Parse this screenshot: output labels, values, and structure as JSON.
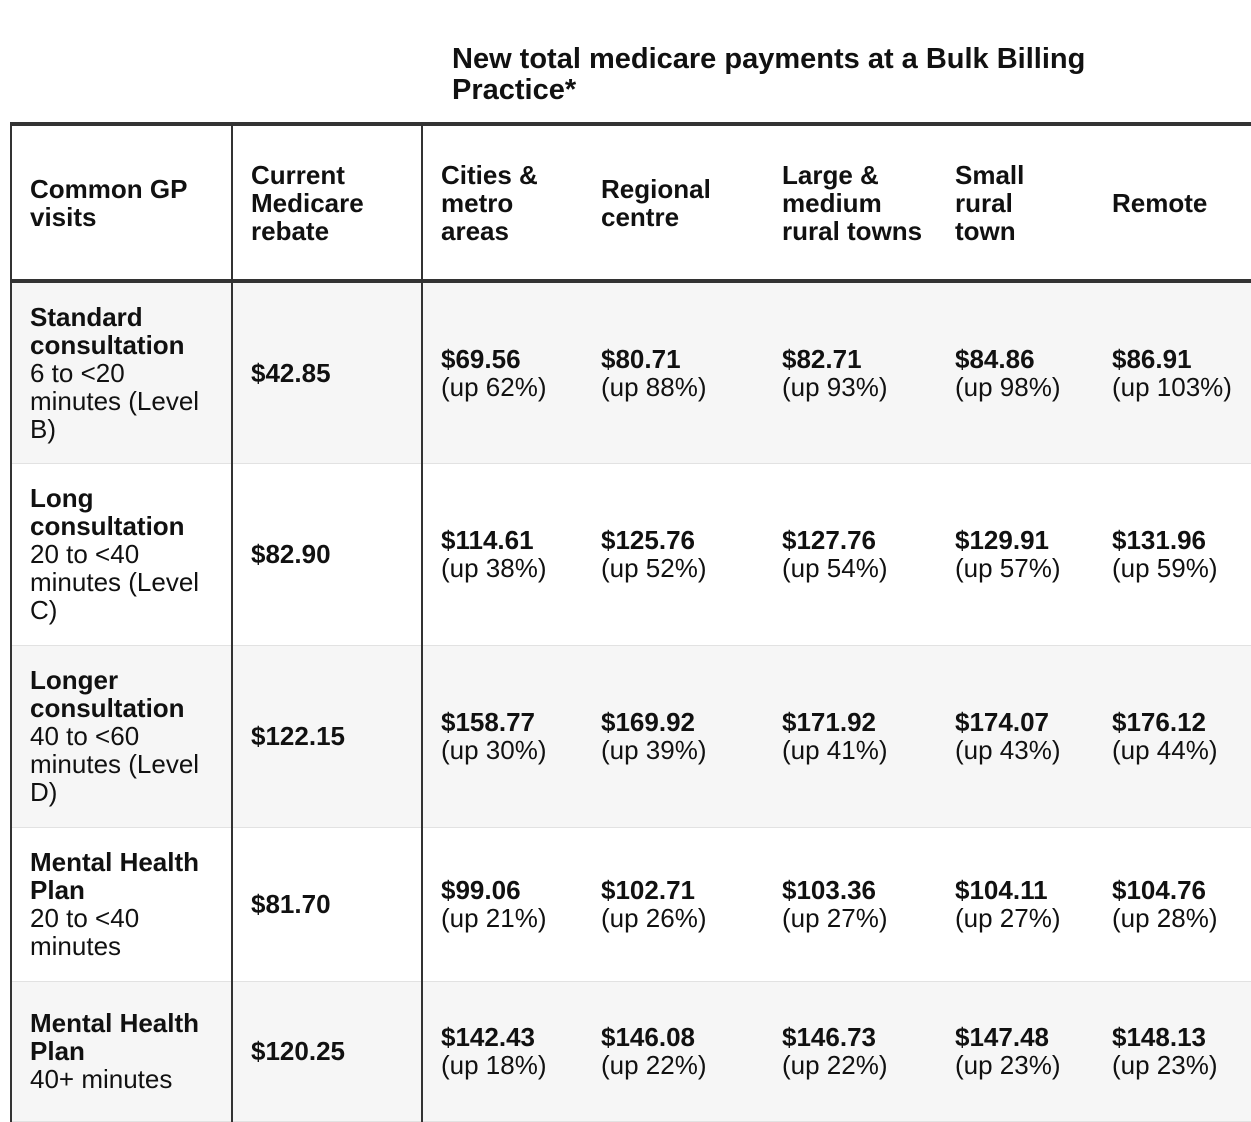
{
  "header": {
    "span_title": "New total medicare payments at a Bulk Billing Practice*"
  },
  "columns": [
    "Common GP visits",
    "Current Medicare rebate",
    "Cities & metro areas",
    "Regional centre",
    "Large & medium rural towns",
    "Small rural town",
    "Remote"
  ],
  "rows": [
    {
      "visit": "Standard consultation",
      "detail": "6 to <20 minutes (Level B)",
      "rebate": "$42.85",
      "cities": {
        "amount": "$69.56",
        "change": "(up 62%)"
      },
      "regional": {
        "amount": "$80.71",
        "change": "(up 88%)"
      },
      "large_rural": {
        "amount": "$82.71",
        "change": "(up 93%)"
      },
      "small_rural": {
        "amount": "$84.86",
        "change": "(up 98%)"
      },
      "remote": {
        "amount": "$86.91",
        "change": "(up 103%)"
      }
    },
    {
      "visit": "Long consultation",
      "detail": "20 to <40 minutes (Level C)",
      "rebate": "$82.90",
      "cities": {
        "amount": "$114.61",
        "change": "(up 38%)"
      },
      "regional": {
        "amount": "$125.76",
        "change": "(up 52%)"
      },
      "large_rural": {
        "amount": "$127.76",
        "change": "(up 54%)"
      },
      "small_rural": {
        "amount": "$129.91",
        "change": "(up 57%)"
      },
      "remote": {
        "amount": "$131.96",
        "change": "(up 59%)"
      }
    },
    {
      "visit": "Longer consultation",
      "detail": "40 to <60 minutes (Level D)",
      "rebate": "$122.15",
      "cities": {
        "amount": "$158.77",
        "change": "(up 30%)"
      },
      "regional": {
        "amount": "$169.92",
        "change": "(up 39%)"
      },
      "large_rural": {
        "amount": "$171.92",
        "change": "(up 41%)"
      },
      "small_rural": {
        "amount": "$174.07",
        "change": "(up 43%)"
      },
      "remote": {
        "amount": "$176.12",
        "change": "(up 44%)"
      }
    },
    {
      "visit": "Mental Health Plan",
      "detail": "20 to <40 minutes",
      "rebate": "$81.70",
      "cities": {
        "amount": "$99.06",
        "change": "(up 21%)"
      },
      "regional": {
        "amount": "$102.71",
        "change": "(up 26%)"
      },
      "large_rural": {
        "amount": "$103.36",
        "change": "(up 27%)"
      },
      "small_rural": {
        "amount": "$104.11",
        "change": "(up 27%)"
      },
      "remote": {
        "amount": "$104.76",
        "change": "(up 28%)"
      }
    },
    {
      "visit": "Mental Health Plan",
      "detail": "40+ minutes",
      "rebate": "$120.25",
      "cities": {
        "amount": "$142.43",
        "change": "(up 18%)"
      },
      "regional": {
        "amount": "$146.08",
        "change": "(up 22%)"
      },
      "large_rural": {
        "amount": "$146.73",
        "change": "(up 22%)"
      },
      "small_rural": {
        "amount": "$147.48",
        "change": "(up 23%)"
      },
      "remote": {
        "amount": "$148.13",
        "change": "(up 23%)"
      }
    }
  ]
}
